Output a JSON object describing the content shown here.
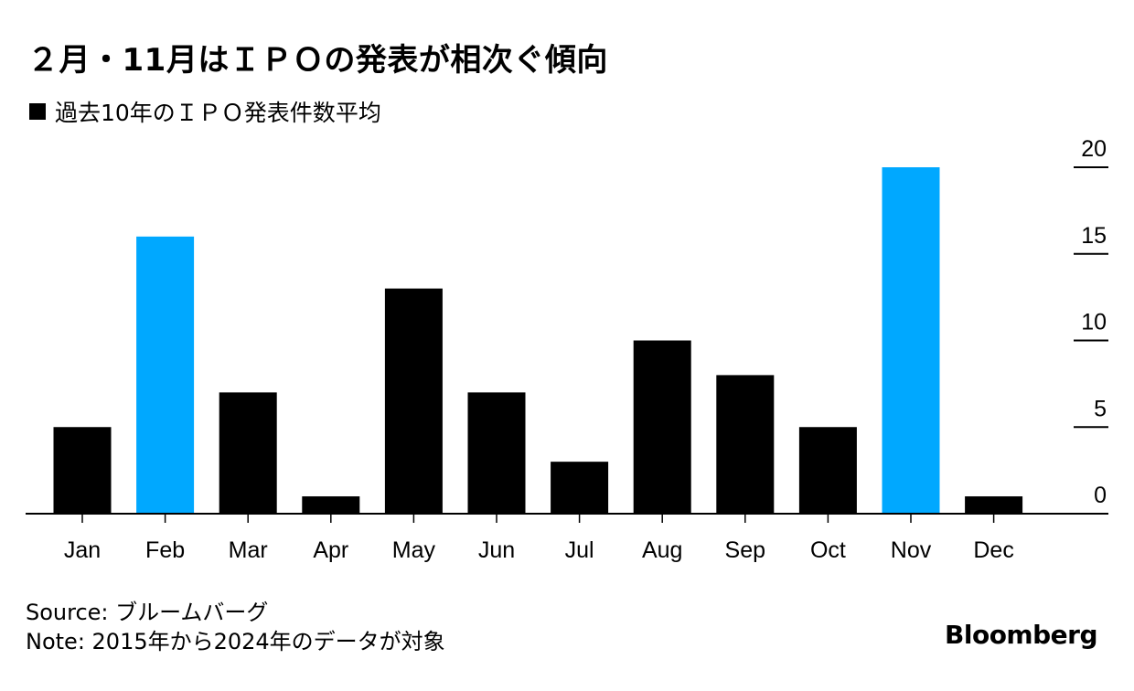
{
  "title": "２月・11月はＩＰＯの発表が相次ぐ傾向",
  "legend": {
    "label": "過去10年のＩＰＯ発表件数平均",
    "color": "#000000"
  },
  "source": "Source: ブルームバーグ",
  "note": "Note: 2015年から2024年のデータが対象",
  "brand": "Bloomberg",
  "chart_data": {
    "type": "bar",
    "categories": [
      "Jan",
      "Feb",
      "Mar",
      "Apr",
      "May",
      "Jun",
      "Jul",
      "Aug",
      "Sep",
      "Oct",
      "Nov",
      "Dec"
    ],
    "series": [
      {
        "name": "過去10年のＩＰＯ発表件数平均",
        "values": [
          5,
          16,
          7,
          1,
          13,
          7,
          3,
          10,
          8,
          5,
          20,
          1
        ]
      }
    ],
    "highlight": [
      "Feb",
      "Nov"
    ],
    "colors": {
      "default": "#000000",
      "highlight": "#00a8ff"
    },
    "ylim": [
      0,
      20
    ],
    "yticks": [
      0,
      5,
      10,
      15,
      20
    ],
    "y_axis_side": "right",
    "xlabel": "",
    "ylabel": "",
    "grid": false
  }
}
